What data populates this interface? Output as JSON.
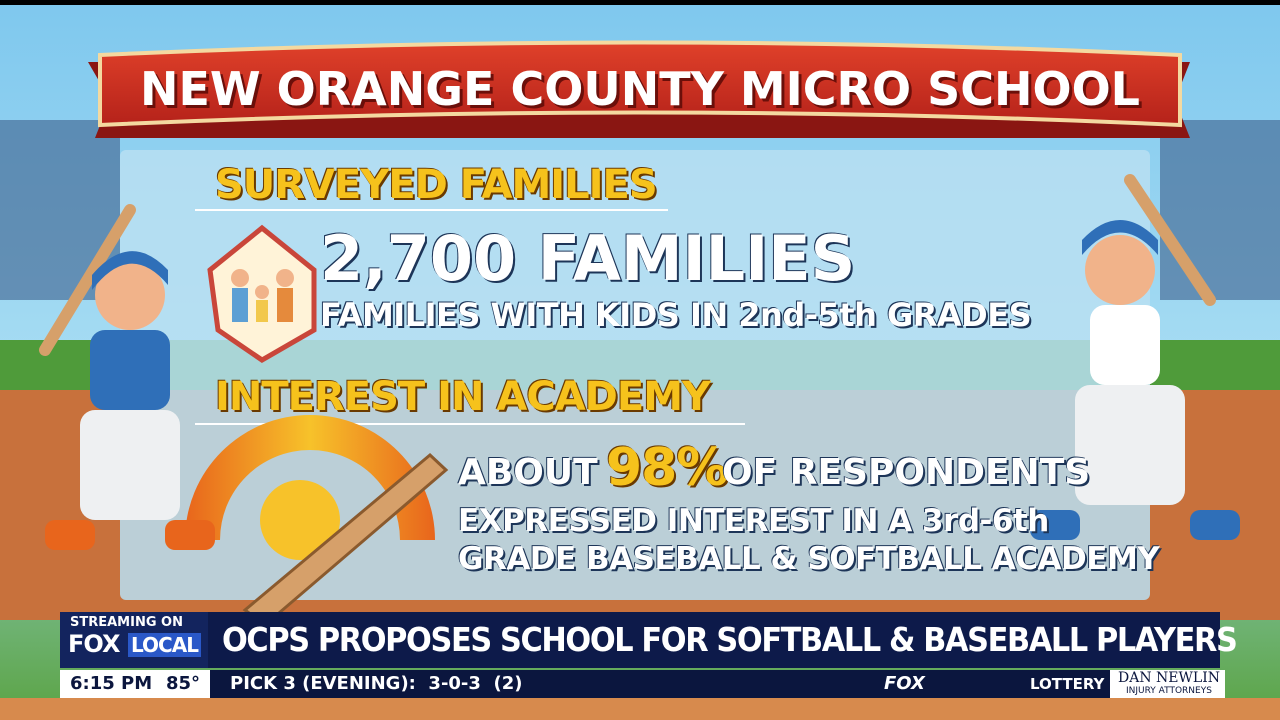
{
  "graphic": {
    "banner": "NEW ORANGE COUNTY MICRO SCHOOL",
    "section_1": {
      "heading": "SURVEYED FAMILIES",
      "stat": "2,700 FAMILIES",
      "detail": "FAMILIES WITH KIDS IN 2nd-5th GRADES"
    },
    "section_2": {
      "heading": "INTEREST IN ACADEMY",
      "lead": "ABOUT",
      "stat": "98%",
      "trail": "OF RESPONDENTS",
      "detail_line_1": "EXPRESSED INTEREST IN A 3rd-6th",
      "detail_line_2": "GRADE BASEBALL & SOFTBALL ACADEMY"
    }
  },
  "lower_third": {
    "bug_top": "STREAMING ON",
    "bug_fox": "FOX",
    "bug_local": "LOCAL",
    "headline": "OCPS PROPOSES SCHOOL FOR SOFTBALL & BASEBALL PLAYERS"
  },
  "ticker": {
    "time": "6:15 PM",
    "temperature": "85°",
    "item": "PICK 3 (EVENING):  3-0-3  (2)",
    "network": "FOX",
    "category": "LOTTERY",
    "sponsor": "DAN NEWLIN",
    "sponsor_sub": "INJURY ATTORNEYS"
  }
}
